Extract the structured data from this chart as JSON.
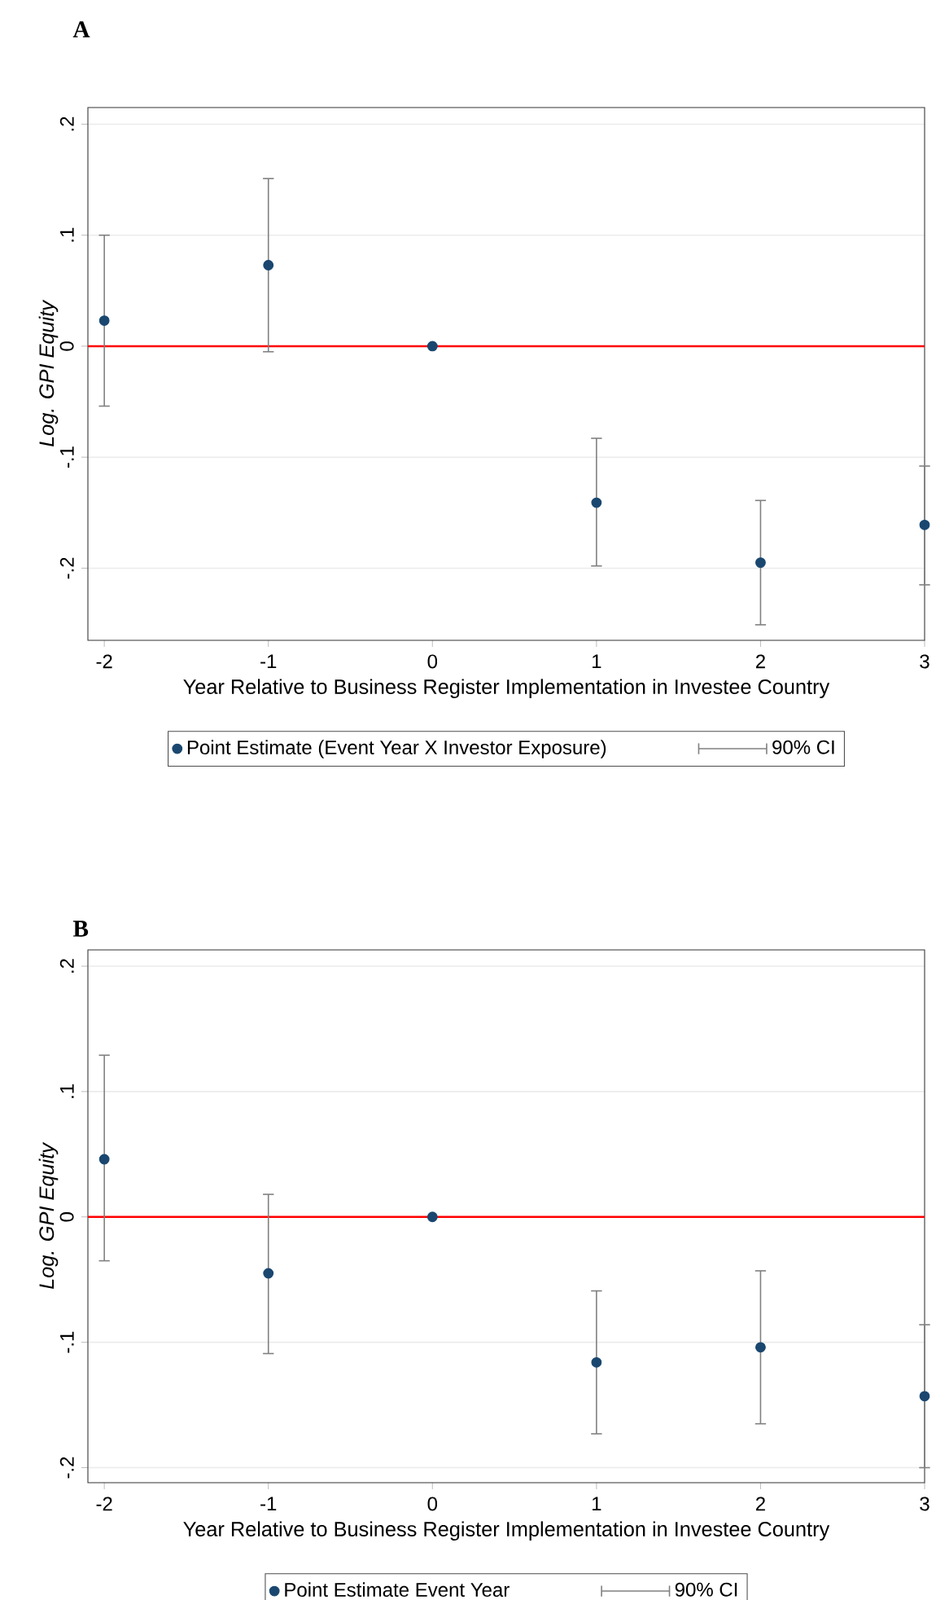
{
  "chart_data": [
    {
      "type": "scatter",
      "title": "A",
      "xlabel": "Year Relative to Business Register Implementation in Investee Country",
      "ylabel": "Log. GPI Equity",
      "x": [
        -2,
        -1,
        0,
        1,
        2,
        3
      ],
      "series": [
        {
          "name": "Point Estimate (Event Year X Investor Exposure)",
          "color": "#1a476f",
          "values": [
            0.023,
            0.073,
            0,
            -0.141,
            -0.195,
            -0.161
          ],
          "errors": [
            [
              -0.054,
              0.1
            ],
            [
              -0.005,
              0.151
            ],
            null,
            [
              -0.198,
              -0.083
            ],
            [
              -0.251,
              -0.139
            ],
            [
              -0.215,
              -0.108
            ]
          ]
        }
      ],
      "xlim": [
        -2.1,
        3
      ],
      "ylim": [
        -0.265,
        0.215
      ],
      "xticks": [
        -2,
        -1,
        0,
        1,
        2,
        3
      ],
      "yticks": [
        {
          "value": -0.2,
          "label": "-.2"
        },
        {
          "value": -0.1,
          "label": "-.1"
        },
        0,
        {
          "value": 0.1,
          "label": ".1"
        },
        {
          "value": 0.2,
          "label": ".2"
        }
      ],
      "grid": "y",
      "legend": "bottom",
      "marker": "circle",
      "ref_lines": [
        {
          "axis": "y",
          "value": 0,
          "color": "#ff0000"
        }
      ],
      "annotations": [
        "90% CI"
      ]
    },
    {
      "type": "scatter",
      "title": "B",
      "xlabel": "Year Relative to Business Register Implementation in Investee Country",
      "ylabel": "Log. GPI Equity",
      "x": [
        -2,
        -1,
        0,
        1,
        2,
        3
      ],
      "series": [
        {
          "name": "Point Estimate Event Year",
          "color": "#1a476f",
          "values": [
            0.046,
            -0.045,
            0,
            -0.116,
            -0.104,
            -0.143
          ],
          "errors": [
            [
              -0.035,
              0.129
            ],
            [
              -0.109,
              0.018
            ],
            null,
            [
              -0.173,
              -0.059
            ],
            [
              -0.165,
              -0.043
            ],
            [
              -0.2,
              -0.086
            ]
          ]
        }
      ],
      "xlim": [
        -2.1,
        3
      ],
      "ylim": [
        -0.212,
        0.213
      ],
      "xticks": [
        -2,
        -1,
        0,
        1,
        2,
        3
      ],
      "yticks": [
        {
          "value": -0.2,
          "label": "-.2"
        },
        {
          "value": -0.1,
          "label": "-.1"
        },
        0,
        {
          "value": 0.1,
          "label": ".1"
        },
        {
          "value": 0.2,
          "label": ".2"
        }
      ],
      "grid": "y",
      "legend": "bottom",
      "marker": "circle",
      "ref_lines": [
        {
          "axis": "y",
          "value": 0,
          "color": "#ff0000"
        }
      ],
      "annotations": [
        "90% CI"
      ]
    }
  ]
}
